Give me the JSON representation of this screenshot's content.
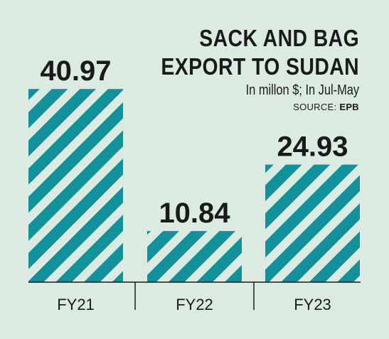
{
  "chart_data": {
    "type": "bar",
    "title_lines": [
      "SACK AND BAG",
      "EXPORT TO SUDAN"
    ],
    "subtitle": "In millon $; In Jul-May",
    "source_label": "SOURCE:",
    "source_value": "EPB",
    "categories": [
      "FY21",
      "FY22",
      "FY23"
    ],
    "values": [
      40.97,
      10.84,
      24.93
    ],
    "value_labels": [
      "40.97",
      "10.84",
      "24.93"
    ],
    "ylim": [
      0,
      41
    ],
    "grid": false,
    "legend": "none"
  },
  "colors": {
    "background": "#dcebe1",
    "bar_stripe": "#12919a",
    "bar_stripe_gap": "#dcebe1",
    "axis": "#1a1a1a",
    "text": "#1a1a1a"
  }
}
